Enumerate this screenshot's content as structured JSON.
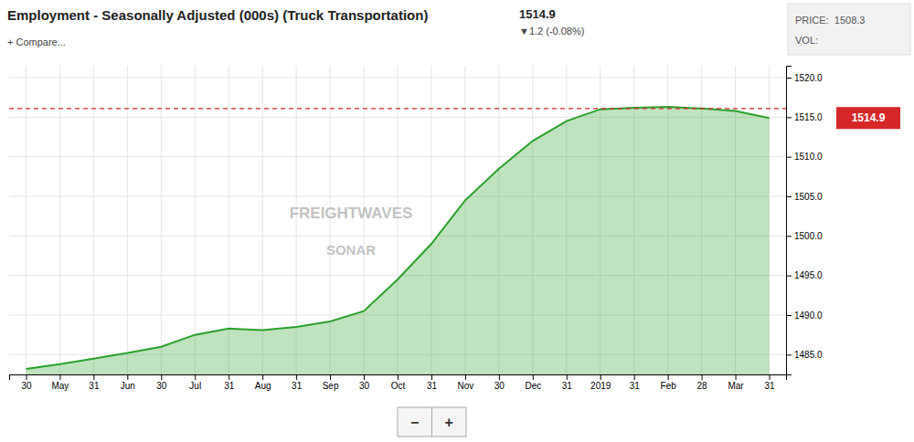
{
  "chart_data": {
    "type": "area",
    "title": "Employment - Seasonally Adjusted (000s) (Truck Transportation)",
    "categories": [
      "30",
      "May",
      "31",
      "Jun",
      "30",
      "Jul",
      "31",
      "Aug",
      "31",
      "Sep",
      "30",
      "Oct",
      "31",
      "Nov",
      "30",
      "Dec",
      "31",
      "2019",
      "31",
      "Feb",
      "28",
      "Mar",
      "31"
    ],
    "values": [
      1483.2,
      1483.8,
      1484.5,
      1485.2,
      1486.0,
      1487.5,
      1488.3,
      1488.1,
      1488.5,
      1489.2,
      1490.5,
      1494.5,
      1499.0,
      1504.5,
      1508.5,
      1512.0,
      1514.5,
      1516.0,
      1516.2,
      1516.3,
      1516.1,
      1515.8,
      1514.9
    ],
    "ylim": [
      1482.5,
      1521.5
    ],
    "yticks": [
      {
        "value": 1485,
        "label": "1485.0"
      },
      {
        "value": 1490,
        "label": "1490.0"
      },
      {
        "value": 1495,
        "label": "1495.0"
      },
      {
        "value": 1500,
        "label": "1500.0"
      },
      {
        "value": 1505,
        "label": "1505.0"
      },
      {
        "value": 1510,
        "label": "1510.0"
      },
      {
        "value": 1515,
        "label": "1515.0"
      },
      {
        "value": 1520,
        "label": "1520.0"
      }
    ],
    "grid": true,
    "reference_line": 1516.1,
    "annotations": [
      "1514.9",
      "▼1.2 (-0.08%)",
      "+ Compare...",
      "1514.9",
      "FREIGHTWAVES",
      "SONAR",
      "PRICE:  1508.3",
      "VOL:",
      "−",
      "+"
    ]
  }
}
